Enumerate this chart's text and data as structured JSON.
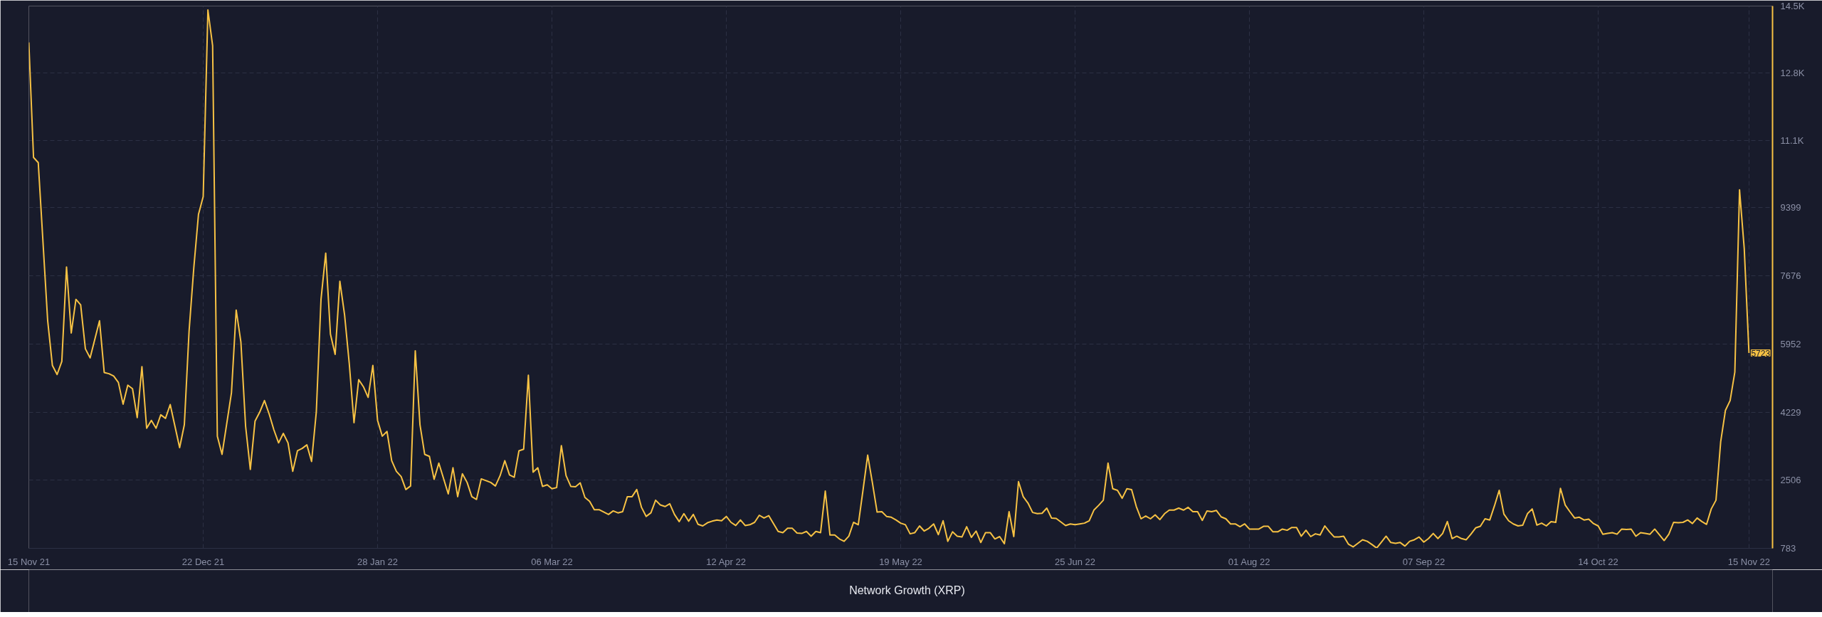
{
  "chart_data": {
    "type": "line",
    "x": [
      "2021-11-15",
      "2021-11-16",
      "2021-11-17",
      "2021-11-19",
      "2021-11-20",
      "2021-11-21",
      "2021-11-22",
      "2021-11-23",
      "2021-11-24",
      "2021-11-25",
      "2021-11-26",
      "2021-11-27",
      "2021-11-28",
      "2021-11-30",
      "2021-12-01",
      "2021-12-02",
      "2021-12-03",
      "2021-12-04",
      "2021-12-05",
      "2021-12-06",
      "2021-12-07",
      "2021-12-08",
      "2021-12-09",
      "2021-12-10",
      "2021-12-11",
      "2021-12-12",
      "2021-12-13",
      "2021-12-14",
      "2021-12-15",
      "2021-12-17",
      "2021-12-18",
      "2021-12-19",
      "2021-12-20",
      "2021-12-21",
      "2021-12-22",
      "2021-12-23",
      "2021-12-24",
      "2021-12-25",
      "2021-12-26",
      "2021-12-28",
      "2021-12-29",
      "2021-12-30",
      "2021-12-31",
      "2022-01-01",
      "2022-01-02",
      "2022-01-03",
      "2022-01-04",
      "2022-01-05",
      "2022-01-06",
      "2022-01-07",
      "2022-01-08",
      "2022-01-09",
      "2022-01-10",
      "2022-01-11",
      "2022-01-12",
      "2022-01-13",
      "2022-01-14",
      "2022-01-15",
      "2022-01-16",
      "2022-01-17",
      "2022-01-18",
      "2022-01-19",
      "2022-01-20",
      "2022-01-21",
      "2022-01-22",
      "2022-01-23",
      "2022-01-24",
      "2022-01-25",
      "2022-01-26",
      "2022-01-27",
      "2022-01-28",
      "2022-01-29",
      "2022-01-30",
      "2022-01-31",
      "2022-02-01",
      "2022-02-02",
      "2022-02-03",
      "2022-02-04",
      "2022-02-05",
      "2022-02-06",
      "2022-02-07",
      "2022-02-08",
      "2022-02-09",
      "2022-02-10",
      "2022-02-12",
      "2022-02-13",
      "2022-02-14",
      "2022-02-15",
      "2022-02-16",
      "2022-02-17",
      "2022-02-18",
      "2022-02-19",
      "2022-02-21",
      "2022-02-22",
      "2022-02-23",
      "2022-02-24",
      "2022-02-25",
      "2022-02-26",
      "2022-02-27",
      "2022-02-28",
      "2022-03-01",
      "2022-03-02",
      "2022-03-03",
      "2022-03-04",
      "2022-03-05",
      "2022-03-06",
      "2022-03-07",
      "2022-03-08",
      "2022-03-09",
      "2022-03-10",
      "2022-03-11",
      "2022-03-12",
      "2022-03-13",
      "2022-03-14",
      "2022-03-15",
      "2022-03-16",
      "2022-03-18",
      "2022-03-19",
      "2022-03-20",
      "2022-03-21",
      "2022-03-22",
      "2022-03-23",
      "2022-03-24",
      "2022-03-25",
      "2022-03-26",
      "2022-03-27",
      "2022-03-28",
      "2022-03-29",
      "2022-03-30",
      "2022-03-31",
      "2022-04-01",
      "2022-04-02",
      "2022-04-03",
      "2022-04-04",
      "2022-04-05",
      "2022-04-06",
      "2022-04-07",
      "2022-04-08",
      "2022-04-09",
      "2022-04-10",
      "2022-04-11",
      "2022-04-12",
      "2022-04-13",
      "2022-04-14",
      "2022-04-15",
      "2022-04-16",
      "2022-04-17",
      "2022-04-18",
      "2022-04-19",
      "2022-04-20",
      "2022-04-21",
      "2022-04-23",
      "2022-04-24",
      "2022-04-25",
      "2022-04-26",
      "2022-04-27",
      "2022-04-28",
      "2022-04-29",
      "2022-04-30",
      "2022-05-01",
      "2022-05-02",
      "2022-05-03",
      "2022-05-04",
      "2022-05-05",
      "2022-05-06",
      "2022-05-07",
      "2022-05-08",
      "2022-05-09",
      "2022-05-10",
      "2022-05-11",
      "2022-05-12",
      "2022-05-13",
      "2022-05-14",
      "2022-05-15",
      "2022-05-16",
      "2022-05-17",
      "2022-05-18",
      "2022-05-19",
      "2022-05-20",
      "2022-05-21",
      "2022-05-22",
      "2022-05-23",
      "2022-05-24",
      "2022-05-25",
      "2022-05-26",
      "2022-05-27",
      "2022-05-28",
      "2022-05-29",
      "2022-05-30",
      "2022-05-31",
      "2022-06-01",
      "2022-06-02",
      "2022-06-03",
      "2022-06-04",
      "2022-06-05",
      "2022-06-06",
      "2022-06-07",
      "2022-06-08",
      "2022-06-09",
      "2022-06-10",
      "2022-06-11",
      "2022-06-12",
      "2022-06-13",
      "2022-06-14",
      "2022-06-15",
      "2022-06-16",
      "2022-06-17",
      "2022-06-18",
      "2022-06-19",
      "2022-06-20",
      "2022-06-21",
      "2022-06-22",
      "2022-06-23",
      "2022-06-24",
      "2022-06-25",
      "2022-06-26",
      "2022-06-27",
      "2022-06-28",
      "2022-06-29",
      "2022-06-30",
      "2022-07-01",
      "2022-07-02",
      "2022-07-03",
      "2022-07-04",
      "2022-07-05",
      "2022-07-06",
      "2022-07-07",
      "2022-07-08",
      "2022-07-09",
      "2022-07-10",
      "2022-07-11",
      "2022-07-12",
      "2022-07-13",
      "2022-07-14",
      "2022-07-15",
      "2022-07-16",
      "2022-07-17",
      "2022-07-18",
      "2022-07-19",
      "2022-07-20",
      "2022-07-21",
      "2022-07-22",
      "2022-07-23",
      "2022-07-24",
      "2022-07-25",
      "2022-07-26",
      "2022-07-27",
      "2022-07-28",
      "2022-07-29",
      "2022-07-30",
      "2022-07-31",
      "2022-08-01",
      "2022-08-02",
      "2022-08-03",
      "2022-08-04",
      "2022-08-05",
      "2022-08-06",
      "2022-08-07",
      "2022-08-08",
      "2022-08-09",
      "2022-08-10",
      "2022-08-11",
      "2022-08-12",
      "2022-08-13",
      "2022-08-14",
      "2022-08-15",
      "2022-08-16",
      "2022-08-17",
      "2022-08-18",
      "2022-08-19",
      "2022-08-20",
      "2022-08-21",
      "2022-08-22",
      "2022-08-23",
      "2022-08-24",
      "2022-08-25",
      "2022-08-26",
      "2022-08-27",
      "2022-08-28",
      "2022-08-29",
      "2022-08-30",
      "2022-08-31",
      "2022-09-01",
      "2022-09-02",
      "2022-09-03",
      "2022-09-04",
      "2022-09-05",
      "2022-09-06",
      "2022-09-07",
      "2022-09-08",
      "2022-09-09",
      "2022-09-10",
      "2022-09-11",
      "2022-09-12",
      "2022-09-13",
      "2022-09-14",
      "2022-09-15",
      "2022-09-16",
      "2022-09-17",
      "2022-09-18",
      "2022-09-19",
      "2022-09-20",
      "2022-09-21",
      "2022-09-22",
      "2022-09-23",
      "2022-09-24",
      "2022-09-25",
      "2022-09-26",
      "2022-09-27",
      "2022-09-28",
      "2022-09-29",
      "2022-09-30",
      "2022-10-01",
      "2022-10-02",
      "2022-10-03",
      "2022-10-04",
      "2022-10-05",
      "2022-10-06",
      "2022-10-07",
      "2022-10-08",
      "2022-10-09",
      "2022-10-10",
      "2022-10-11",
      "2022-10-12",
      "2022-10-13",
      "2022-10-14",
      "2022-10-15",
      "2022-10-16",
      "2022-10-17",
      "2022-10-18",
      "2022-10-19",
      "2022-10-20",
      "2022-10-21",
      "2022-10-22",
      "2022-10-23",
      "2022-10-24",
      "2022-10-25",
      "2022-10-26",
      "2022-10-28",
      "2022-10-29",
      "2022-10-30",
      "2022-10-31",
      "2022-11-01",
      "2022-11-02",
      "2022-11-03",
      "2022-11-04",
      "2022-11-05",
      "2022-11-06",
      "2022-11-07",
      "2022-11-08",
      "2022-11-09",
      "2022-11-10",
      "2022-11-11",
      "2022-11-12",
      "2022-11-13",
      "2022-11-14",
      "2022-11-15"
    ],
    "series": [
      {
        "name": "Network Growth (XRP)",
        "color": "#f7c244",
        "values": [
          13580,
          10670,
          10540,
          6540,
          5410,
          5180,
          5510,
          7900,
          6230,
          7080,
          6940,
          5830,
          5600,
          6540,
          5230,
          5200,
          5140,
          4980,
          4430,
          4910,
          4820,
          4090,
          5380,
          3820,
          4020,
          3820,
          4160,
          4070,
          4420,
          3330,
          3910,
          6270,
          7870,
          9230,
          9680,
          14400,
          13500,
          3620,
          3160,
          4720,
          6810,
          6000,
          3870,
          2780,
          4000,
          4230,
          4520,
          4180,
          3780,
          3450,
          3690,
          3450,
          2730,
          3250,
          3310,
          3400,
          2980,
          4230,
          7080,
          8250,
          6200,
          5690,
          7540,
          6690,
          5450,
          3960,
          5050,
          4870,
          4600,
          5410,
          4020,
          3620,
          3740,
          3000,
          2730,
          2600,
          2270,
          2360,
          5780,
          3910,
          3160,
          3110,
          2530,
          2940,
          2160,
          2820,
          2090,
          2670,
          2450,
          2090,
          2020,
          2540,
          2450,
          2360,
          2620,
          3000,
          2640,
          2580,
          3250,
          3290,
          5160,
          2710,
          2820,
          2350,
          2390,
          2290,
          2320,
          3380,
          2620,
          2350,
          2340,
          2440,
          2070,
          1970,
          1760,
          1760,
          1640,
          1730,
          1680,
          1710,
          2090,
          2090,
          2270,
          1820,
          1590,
          1680,
          2000,
          1880,
          1840,
          1910,
          1640,
          1460,
          1660,
          1470,
          1640,
          1390,
          1350,
          1430,
          1470,
          1500,
          1480,
          1590,
          1440,
          1360,
          1500,
          1360,
          1380,
          1440,
          1620,
          1550,
          1610,
          1210,
          1180,
          1290,
          1290,
          1170,
          1160,
          1210,
          1090,
          1210,
          1180,
          2230,
          1120,
          1120,
          1020,
          960,
          1090,
          1440,
          1380,
          2250,
          3140,
          2440,
          1700,
          1710,
          1590,
          1570,
          1500,
          1420,
          1380,
          1150,
          1180,
          1350,
          1220,
          1290,
          1400,
          1130,
          1480,
          960,
          1200,
          1090,
          1070,
          1330,
          1060,
          1220,
          930,
          1180,
          1180,
          1020,
          1080,
          900,
          1710,
          1080,
          2470,
          2090,
          1930,
          1690,
          1660,
          1670,
          1800,
          1550,
          1540,
          1450,
          1360,
          1400,
          1380,
          1400,
          1420,
          1480,
          1750,
          1870,
          2000,
          2940,
          2290,
          2250,
          2050,
          2290,
          2270,
          1840,
          1530,
          1600,
          1530,
          1630,
          1510,
          1660,
          1750,
          1750,
          1800,
          1750,
          1820,
          1710,
          1710,
          1490,
          1730,
          1710,
          1740,
          1580,
          1530,
          1400,
          1400,
          1330,
          1400,
          1270,
          1270,
          1270,
          1340,
          1340,
          1200,
          1200,
          1270,
          1240,
          1310,
          1310,
          1090,
          1240,
          1080,
          1150,
          1120,
          1350,
          1200,
          1070,
          1070,
          1090,
          890,
          820,
          910,
          1000,
          960,
          880,
          790,
          940,
          1090,
          930,
          910,
          930,
          840,
          960,
          1000,
          1070,
          940,
          1030,
          1160,
          1030,
          1160,
          1460,
          1030,
          1090,
          1030,
          1000,
          1140,
          1300,
          1340,
          1530,
          1500,
          1860,
          2250,
          1650,
          1480,
          1400,
          1350,
          1370,
          1660,
          1780,
          1370,
          1420,
          1350,
          1460,
          1440,
          2300,
          1880,
          1710,
          1550,
          1570,
          1500,
          1520,
          1410,
          1350,
          1140,
          1160,
          1180,
          1140,
          1270,
          1260,
          1270,
          1090,
          1180,
          1160,
          1140,
          1270,
          980,
          1140,
          1440,
          1430,
          1440,
          1500,
          1410,
          1550,
          1460,
          1390,
          1780,
          2000,
          3480,
          4270,
          4520,
          5240,
          9850,
          8360,
          5723
        ]
      }
    ],
    "xlim": [
      "2021-11-15",
      "2022-11-20"
    ],
    "xticks": [
      {
        "value": "2021-11-15",
        "label": "15 Nov 21"
      },
      {
        "value": "2021-12-22",
        "label": "22 Dec 21"
      },
      {
        "value": "2022-01-28",
        "label": "28 Jan 22"
      },
      {
        "value": "2022-03-06",
        "label": "06 Mar 22"
      },
      {
        "value": "2022-04-12",
        "label": "12 Apr 22"
      },
      {
        "value": "2022-05-19",
        "label": "19 May 22"
      },
      {
        "value": "2022-06-25",
        "label": "25 Jun 22"
      },
      {
        "value": "2022-08-01",
        "label": "01 Aug 22"
      },
      {
        "value": "2022-09-07",
        "label": "07 Sep 22"
      },
      {
        "value": "2022-10-14",
        "label": "14 Oct 22"
      },
      {
        "value": "2022-11-15",
        "label": "15 Nov 22"
      }
    ],
    "ylim": [
      783,
      14500
    ],
    "yticks": [
      783,
      2506,
      4229,
      5952,
      7676,
      9399,
      {
        "value": 11100,
        "label": "11.1K"
      },
      {
        "value": 12800,
        "label": "12.8K"
      },
      {
        "value": 14500,
        "label": "14.5K"
      }
    ],
    "annotations": [
      {
        "text": "5723",
        "x": "2022-11-15",
        "y": 5723
      }
    ],
    "grid": true,
    "legend": "bottom"
  }
}
